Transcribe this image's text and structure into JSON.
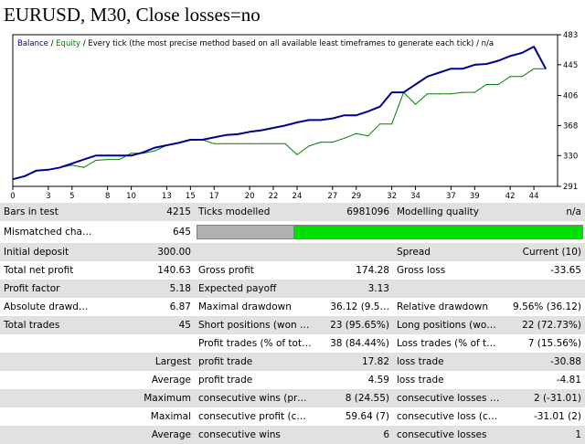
{
  "title": "EURUSD, M30, Close losses=no",
  "chart_data": {
    "type": "line",
    "legend": {
      "balance": "Balance",
      "equity": "Equity",
      "description": " / Every tick (the most precise method based on all available least timeframes to generate each tick) / n/a"
    },
    "x_ticks": [
      "0",
      "3",
      "5",
      "8",
      "10",
      "13",
      "15",
      "17",
      "20",
      "22",
      "24",
      "27",
      "29",
      "32",
      "34",
      "37",
      "39",
      "42",
      "44"
    ],
    "x_range": [
      0,
      46
    ],
    "y_ticks": [
      "291",
      "330",
      "368",
      "406",
      "445",
      "483"
    ],
    "y_range": [
      291,
      483
    ],
    "series": [
      {
        "name": "Balance",
        "color": "#00008b",
        "x": [
          0,
          1,
          2,
          3,
          4,
          5,
          6,
          7,
          8,
          9,
          10,
          11,
          12,
          13,
          14,
          15,
          16,
          17,
          18,
          19,
          20,
          21,
          22,
          23,
          24,
          25,
          26,
          27,
          28,
          29,
          30,
          31,
          32,
          33,
          34,
          35,
          36,
          37,
          38,
          39,
          40,
          41,
          42,
          43,
          44,
          45
        ],
        "y": [
          300,
          304,
          311,
          312,
          315,
          320,
          325,
          330,
          330,
          330,
          330,
          334,
          340,
          343,
          346,
          350,
          350,
          353,
          356,
          357,
          360,
          362,
          365,
          368,
          372,
          375,
          375,
          377,
          381,
          381,
          386,
          392,
          410,
          410,
          420,
          430,
          435,
          440,
          440,
          445,
          446,
          450,
          456,
          460,
          468,
          440
        ]
      },
      {
        "name": "Equity",
        "color": "#008000",
        "x": [
          0,
          1,
          2,
          3,
          4,
          5,
          6,
          7,
          8,
          9,
          10,
          11,
          12,
          13,
          14,
          15,
          16,
          17,
          18,
          19,
          20,
          21,
          22,
          23,
          24,
          25,
          26,
          27,
          28,
          29,
          30,
          31,
          32,
          33,
          34,
          35,
          36,
          37,
          38,
          39,
          40,
          41,
          42,
          43,
          44,
          45
        ],
        "y": [
          300,
          304,
          311,
          312,
          315,
          318,
          315,
          324,
          325,
          325,
          333,
          333,
          336,
          343,
          346,
          350,
          350,
          345,
          345,
          345,
          345,
          345,
          345,
          345,
          331,
          342,
          347,
          347,
          352,
          358,
          355,
          370,
          370,
          410,
          395,
          408,
          408,
          408,
          410,
          410,
          420,
          420,
          430,
          430,
          440,
          440
        ]
      }
    ]
  },
  "report": {
    "rows": [
      [
        "Bars in test",
        "4215",
        "Ticks modelled",
        "6981096",
        "Modelling quality",
        "n/a"
      ],
      [
        "Mismatched chart…",
        "645"
      ],
      [
        "Initial deposit",
        "300.00",
        "",
        "",
        "Spread",
        "Current (10)"
      ],
      [
        "Total net profit",
        "140.63",
        "Gross profit",
        "174.28",
        "Gross loss",
        "-33.65"
      ],
      [
        "Profit factor",
        "5.18",
        "Expected payoff",
        "3.13",
        "",
        ""
      ],
      [
        "Absolute drawdown",
        "6.87",
        "Maximal drawdown",
        "36.12 (9.5…",
        "Relative drawdown",
        "9.56% (36.12)"
      ],
      [
        "Total trades",
        "45",
        "Short positions (won %)",
        "23 (95.65%)",
        "Long positions (won %)",
        "22 (72.73%)"
      ],
      [
        "",
        "",
        "Profit trades (% of total)",
        "38 (84.44%)",
        "Loss trades (% of total)",
        "7 (15.56%)"
      ],
      [
        "",
        "Largest",
        "profit trade",
        "17.82",
        "loss trade",
        "-30.88"
      ],
      [
        "",
        "Average",
        "profit trade",
        "4.59",
        "loss trade",
        "-4.81"
      ],
      [
        "",
        "Maximum",
        "consecutive wins (prof…",
        "8 (24.55)",
        "consecutive losses (lo…",
        "2 (-31.01)"
      ],
      [
        "",
        "Maximal",
        "consecutive profit (co…",
        "59.64 (7)",
        "consecutive loss (coun…",
        "-31.01 (2)"
      ],
      [
        "",
        "Average",
        "consecutive wins",
        "6",
        "consecutive losses",
        "1"
      ]
    ],
    "mismatched_quality_fraction": 0.25,
    "quality_bar_colors": {
      "fill": "#00e000",
      "empty": "#b0b0b0"
    }
  }
}
